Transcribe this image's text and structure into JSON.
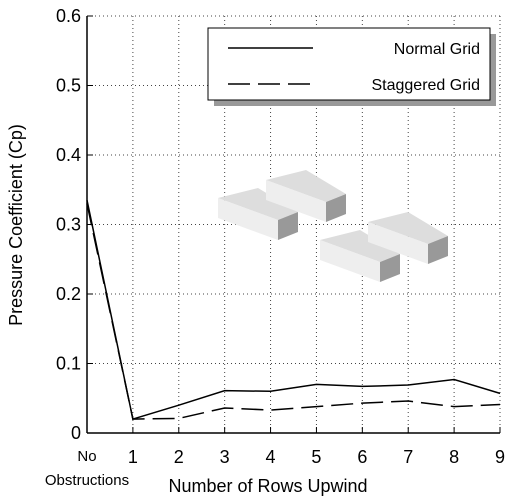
{
  "chart_data": {
    "type": "line",
    "x_label": "Number of Rows Upwind",
    "y_label": "Pressure Coefficient (Cp)",
    "x": [
      0,
      1,
      2,
      3,
      4,
      5,
      6,
      7,
      8,
      9
    ],
    "xlim": [
      0,
      9
    ],
    "xticks": [
      {
        "value": 0,
        "label": "No Obstructions"
      },
      1,
      2,
      3,
      4,
      5,
      6,
      7,
      8,
      9
    ],
    "ylim": [
      0,
      0.6
    ],
    "yticks": [
      0,
      0.1,
      0.2,
      0.3,
      0.4,
      0.5,
      0.6
    ],
    "grid": true,
    "legend": "upper right",
    "series": [
      {
        "name": "Normal Grid",
        "color": "#000000",
        "dash": "solid",
        "values": [
          0.335,
          0.02,
          0.04,
          0.061,
          0.06,
          0.07,
          0.067,
          0.069,
          0.077,
          0.057
        ]
      },
      {
        "name": "Staggered Grid",
        "color": "#000000",
        "dash": "dashed",
        "values": [
          0.33,
          0.02,
          0.021,
          0.036,
          0.033,
          0.038,
          0.043,
          0.046,
          0.038,
          0.041
        ]
      }
    ]
  }
}
